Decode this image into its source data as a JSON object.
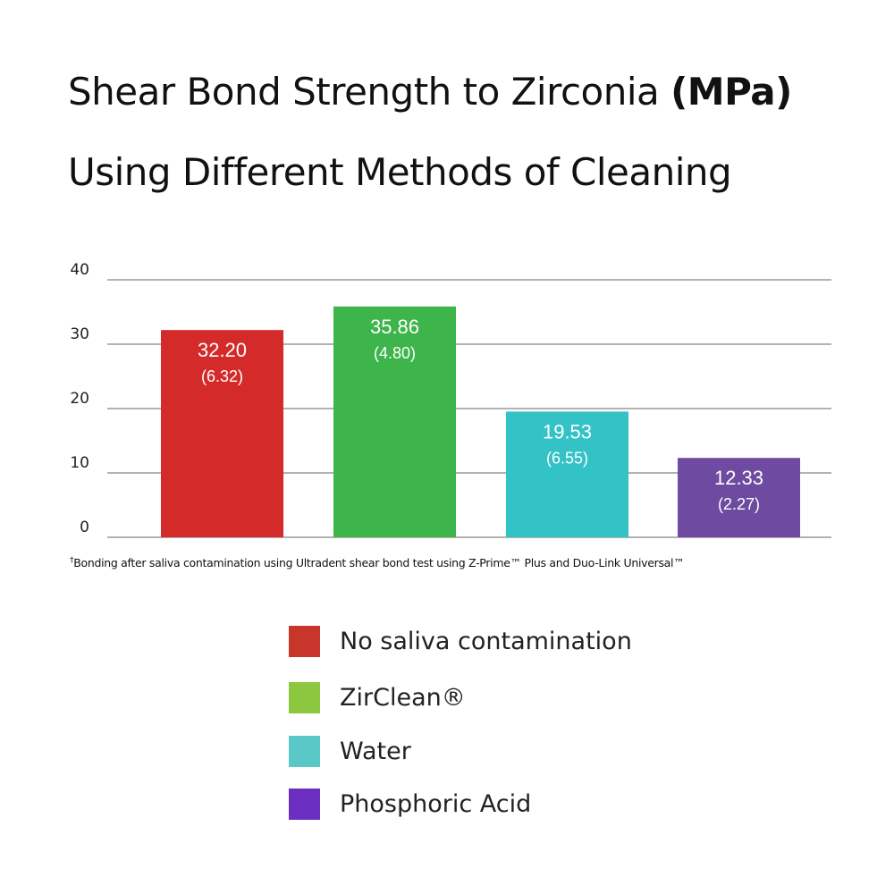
{
  "title": {
    "line1_main": "Shear Bond Strength to Zirconia ",
    "line1_bold": "(MPa)",
    "line2": "Using Different Methods of Cleaning"
  },
  "footnote": {
    "mark": "†",
    "text": "Bonding after saliva contamination using Ultradent shear bond test using Z-Prime™ Plus and Duo-Link Universal™"
  },
  "chart_data": {
    "type": "bar",
    "title": "Shear Bond Strength to Zirconia (MPa) Using Different Methods of Cleaning",
    "categories": [
      "No saliva contamination",
      "ZirClean®",
      "Water",
      "Phosphoric Acid"
    ],
    "values": [
      32.2,
      35.86,
      19.53,
      12.33
    ],
    "value_labels": [
      "32.20",
      "35.86",
      "19.53",
      "12.33"
    ],
    "sd_labels": [
      "(6.32)",
      "(4.80)",
      "(6.55)",
      "(2.27)"
    ],
    "bar_colors": [
      "#d42a2a",
      "#3db54a",
      "#33c2c6",
      "#6e4aa0"
    ],
    "legend_colors": [
      "#c8352a",
      "#8dc63f",
      "#5bc8c8",
      "#6a2fc0"
    ],
    "yticks": [
      "0",
      "10",
      "20",
      "30",
      "40"
    ],
    "ylim": [
      0,
      40
    ],
    "grid": true,
    "legend_placement": "bottom"
  }
}
